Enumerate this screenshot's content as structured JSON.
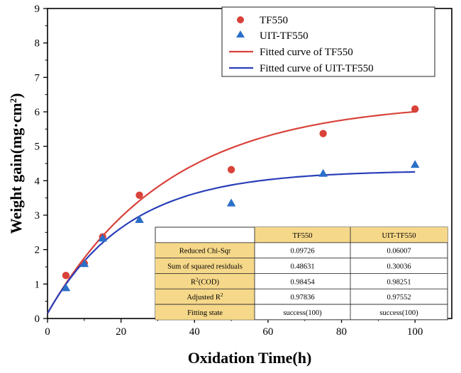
{
  "chart_data": {
    "type": "scatter",
    "xlabel": "Oxidation Time(h)",
    "ylabel": "Weight gain(mg·cm",
    "ylabel_sup": "2",
    "ylabel_end": ")",
    "xlim": [
      0,
      110
    ],
    "ylim": [
      0,
      9
    ],
    "xticks": [
      0,
      20,
      40,
      60,
      80,
      100
    ],
    "yticks": [
      0,
      1,
      2,
      3,
      4,
      5,
      6,
      7,
      8,
      9
    ],
    "grid": false,
    "legend_position": "top-right",
    "series": [
      {
        "name": "TF550",
        "marker": "circle",
        "color": "#d9423a",
        "x": [
          5,
          10,
          15,
          25,
          50,
          75,
          100
        ],
        "values": [
          1.25,
          1.6,
          2.37,
          3.58,
          4.32,
          5.37,
          6.08
        ]
      },
      {
        "name": "UIT-TF550",
        "marker": "triangle",
        "color": "#2a6fc9",
        "x": [
          5,
          10,
          15,
          25,
          50,
          75,
          100
        ],
        "values": [
          0.88,
          1.58,
          2.32,
          2.86,
          3.34,
          4.2,
          4.46
        ]
      }
    ],
    "fitted_curves": [
      {
        "name": "Fitted curve of TF550",
        "color": "#d9423a",
        "x0": 0,
        "y0": 0.15,
        "A": 6.15,
        "t": 33
      },
      {
        "name": "Fitted curve of UIT-TF550",
        "color": "#2a3fb8",
        "x0": 0,
        "y0": 0.15,
        "A": 4.15,
        "t": 22
      }
    ],
    "fit_table": {
      "headers": [
        "",
        "TF550",
        "UIT-TF550"
      ],
      "rows": [
        {
          "label": "Reduced Chi-Sqr",
          "label_sup": "",
          "label_after": "",
          "values": [
            "0.09726",
            "0.06007"
          ]
        },
        {
          "label": "Sum of squared residuals",
          "label_sup": "",
          "label_after": "",
          "values": [
            "0.48631",
            "0.30036"
          ]
        },
        {
          "label": "R",
          "label_sup": "2",
          "label_after": "(COD)",
          "values": [
            "0.98454",
            "0.98251"
          ]
        },
        {
          "label": "Adjusted R",
          "label_sup": "2",
          "label_after": "",
          "values": [
            "0.97836",
            "0.97552"
          ]
        },
        {
          "label": "Fitting state",
          "label_sup": "",
          "label_after": "",
          "values": [
            "success(100)",
            "success(100)"
          ]
        }
      ],
      "header_color": "#f6d88a"
    }
  }
}
